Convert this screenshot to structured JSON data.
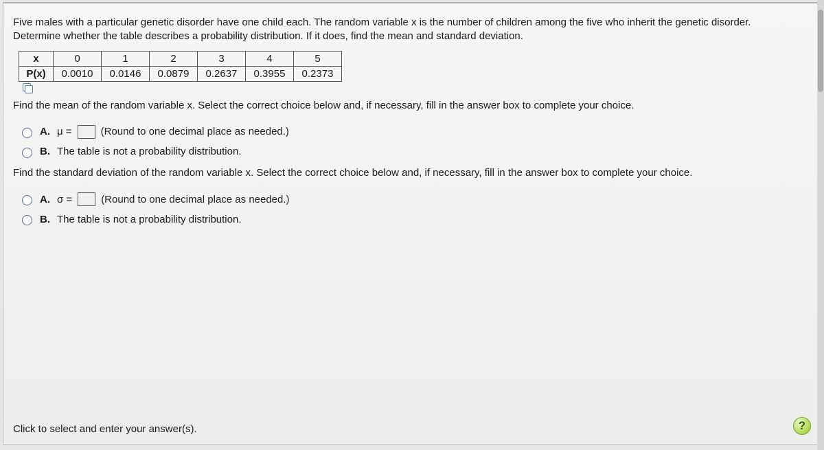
{
  "problem": {
    "line1": "Five males with a particular genetic disorder have one child each. The random variable x is the number of children among the five who inherit the genetic disorder.",
    "line2": "Determine whether the table describes a probability distribution. If it does, find the mean and standard deviation."
  },
  "table": {
    "row_head_x": "x",
    "row_head_px": "P(x)",
    "x_values": [
      "0",
      "1",
      "2",
      "3",
      "4",
      "5"
    ],
    "p_values": [
      "0.0010",
      "0.0146",
      "0.0879",
      "0.2637",
      "0.3955",
      "0.2373"
    ]
  },
  "q1": {
    "prompt": "Find the mean of the random variable x. Select the correct choice below and, if necessary, fill in the answer box to complete your choice.",
    "optA_label": "A.",
    "optA_prefix": "μ =",
    "optA_hint": "(Round to one decimal place as needed.)",
    "optB_label": "B.",
    "optB_text": "The table is not a probability distribution."
  },
  "q2": {
    "prompt": "Find the standard deviation of the random variable x. Select the correct choice below and, if necessary, fill in the answer box to complete your choice.",
    "optA_label": "A.",
    "optA_prefix": "σ =",
    "optA_hint": "(Round to one decimal place as needed.)",
    "optB_label": "B.",
    "optB_text": "The table is not a probability distribution."
  },
  "footer": "Click to select and enter your answer(s).",
  "help": "?"
}
